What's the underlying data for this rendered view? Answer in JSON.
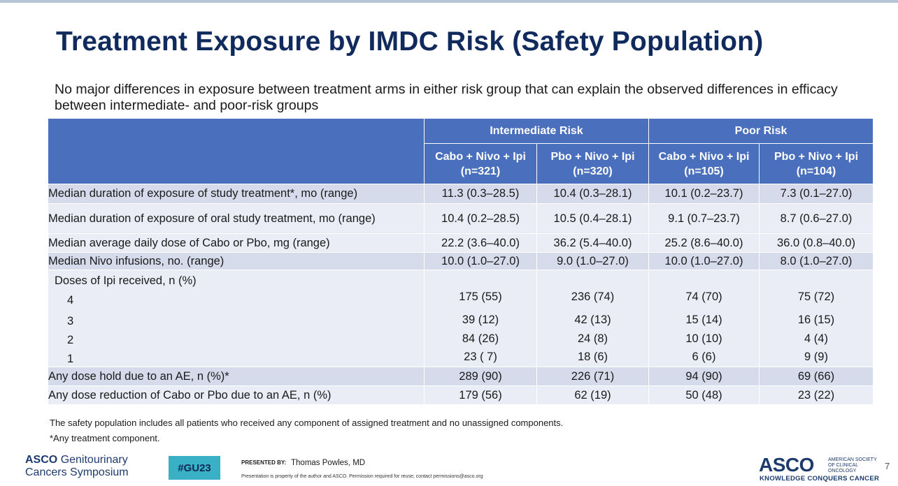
{
  "slide": {
    "title": "Treatment Exposure by IMDC Risk (Safety Population)",
    "subtitle": "No major differences in exposure between treatment arms in either risk group that can explain the observed differences in efficacy between intermediate- and poor-risk groups",
    "page_number": "7"
  },
  "table": {
    "groups": [
      "Intermediate Risk",
      "Poor Risk"
    ],
    "arms": [
      {
        "name": "Cabo + Nivo + Ipi",
        "n": "(n=321)"
      },
      {
        "name": "Pbo + Nivo + Ipi",
        "n": "(n=320)"
      },
      {
        "name": "Cabo + Nivo + Ipi",
        "n": "(n=105)"
      },
      {
        "name": "Pbo + Nivo + Ipi",
        "n": "(n=104)"
      }
    ],
    "rows": [
      {
        "label": "Median duration of exposure of study treatment*, mo (range)",
        "values": [
          "11.3 (0.3–28.5)",
          "10.4 (0.3–28.1)",
          "10.1 (0.2–23.7)",
          "7.3 (0.1–27.0)"
        ]
      },
      {
        "label": "Median duration of exposure of oral study treatment, mo (range)",
        "values": [
          "10.4 (0.2–28.5)",
          "10.5 (0.4–28.1)",
          "9.1 (0.7–23.7)",
          "8.7 (0.6–27.0)"
        ]
      },
      {
        "label": "Median average daily dose of Cabo or Pbo, mg (range)",
        "values": [
          "22.2 (3.6–40.0)",
          "36.2 (5.4–40.0)",
          "25.2 (8.6–40.0)",
          "36.0 (0.8–40.0)"
        ]
      },
      {
        "label": "Median Nivo infusions, no. (range)",
        "values": [
          "10.0 (1.0–27.0)",
          "9.0 (1.0–27.0)",
          "10.0 (1.0–27.0)",
          "8.0 (1.0–27.0)"
        ]
      }
    ],
    "ipi": {
      "label": "Doses of Ipi received, n (%)",
      "doses": [
        {
          "dose": "4",
          "values": [
            "175 (55)",
            "236 (74)",
            "74 (70)",
            "75 (72)"
          ]
        },
        {
          "dose": "3",
          "values": [
            "39 (12)",
            "42 (13)",
            "15 (14)",
            "16 (15)"
          ]
        },
        {
          "dose": "2",
          "values": [
            "84 (26)",
            "24 (8)",
            "10 (10)",
            "4 (4)"
          ]
        },
        {
          "dose": "1",
          "values": [
            "23 ( 7)",
            "18 (6)",
            "6 (6)",
            "9 (9)"
          ]
        }
      ]
    },
    "bottom_rows": [
      {
        "label": "Any dose hold due to an AE, n (%)*",
        "values": [
          "289 (90)",
          "226 (71)",
          "94 (90)",
          "69 (66)"
        ]
      },
      {
        "label": "Any dose reduction of Cabo or Pbo due to an AE, n (%)",
        "values": [
          "179 (56)",
          "62 (19)",
          "50 (48)",
          "23 (22)"
        ]
      }
    ]
  },
  "footnotes": [
    "The safety population includes all patients who received any component of assigned treatment and no unassigned components.",
    "*Any treatment component."
  ],
  "footer": {
    "meeting_brand": "ASCO",
    "meeting_name_1": "Genitourinary",
    "meeting_name_2": "Cancers Symposium",
    "hashtag": "#GU23",
    "presented_by_label": "PRESENTED BY:",
    "presenter": "Thomas Powles, MD",
    "disclaimer": "Presentation is property of the author and ASCO. Permission required for reuse; contact permissions@asco.org",
    "logo": "ASCO",
    "org_name": "AMERICAN SOCIETY OF CLINICAL ONCOLOGY",
    "tagline": "KNOWLEDGE CONQUERS CANCER"
  }
}
